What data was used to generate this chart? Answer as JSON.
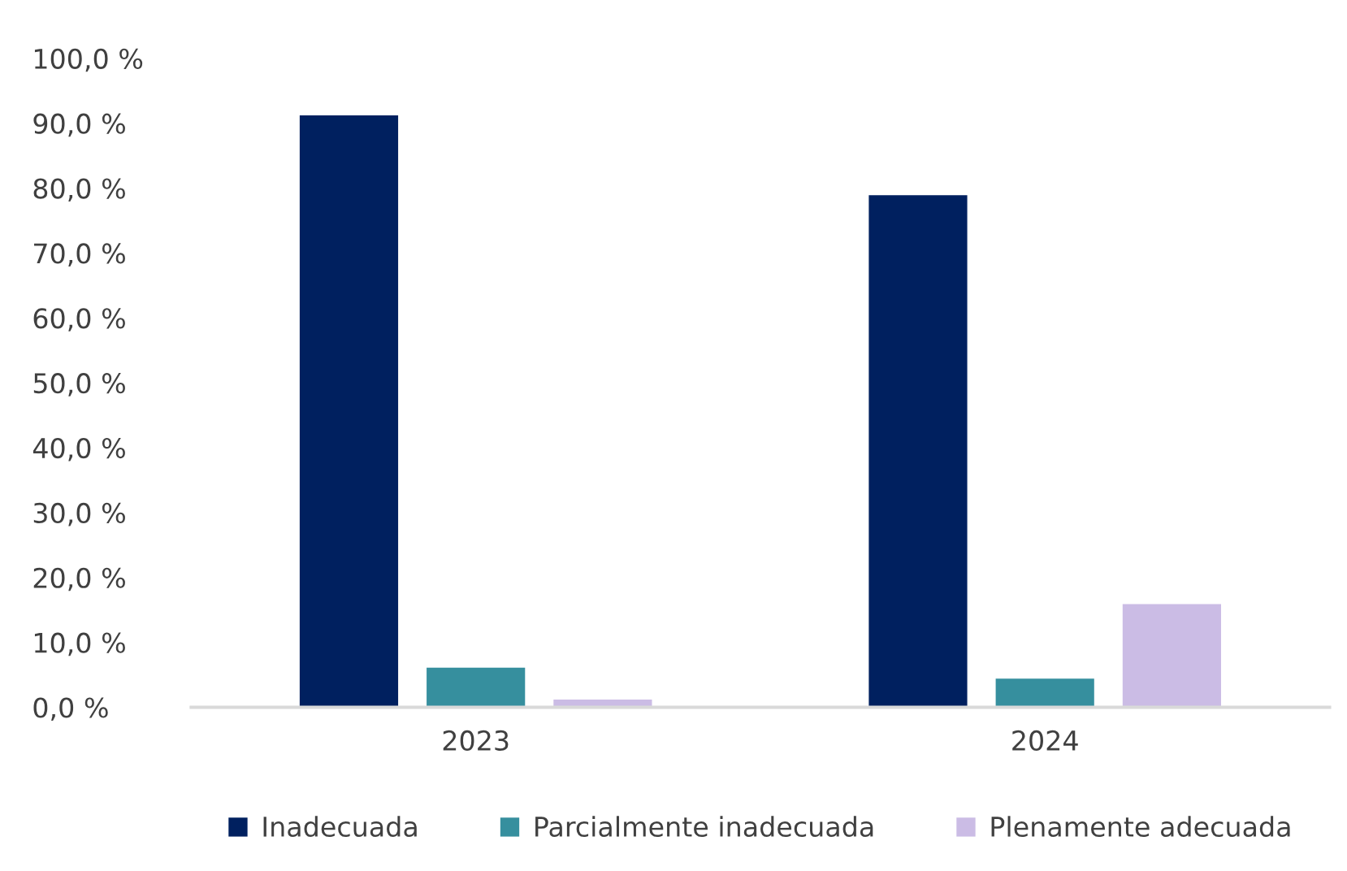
{
  "chart_data": {
    "type": "bar",
    "categories": [
      "2023",
      "2024"
    ],
    "series": [
      {
        "name": "Inadecuada",
        "color": "#00205f",
        "values": [
          91.2,
          78.9
        ]
      },
      {
        "name": "Parcialmente inadecuada",
        "color": "#368f9e",
        "values": [
          6.1,
          4.4
        ]
      },
      {
        "name": "Plenamente adecuada",
        "color": "#cbbce5",
        "values": [
          1.2,
          15.9
        ]
      }
    ],
    "ylim": [
      0,
      100
    ],
    "yticks": [
      {
        "value": 0,
        "label": "0,0 %"
      },
      {
        "value": 10,
        "label": "10,0 %"
      },
      {
        "value": 20,
        "label": "20,0 %"
      },
      {
        "value": 30,
        "label": "30,0 %"
      },
      {
        "value": 40,
        "label": "40,0 %"
      },
      {
        "value": 50,
        "label": "50,0 %"
      },
      {
        "value": 60,
        "label": "60,0 %"
      },
      {
        "value": 70,
        "label": "70,0 %"
      },
      {
        "value": 80,
        "label": "80,0 %"
      },
      {
        "value": 90,
        "label": "90,0 %"
      },
      {
        "value": 100,
        "label": "100,0 %"
      }
    ],
    "grid": false,
    "legend": "bottom"
  }
}
